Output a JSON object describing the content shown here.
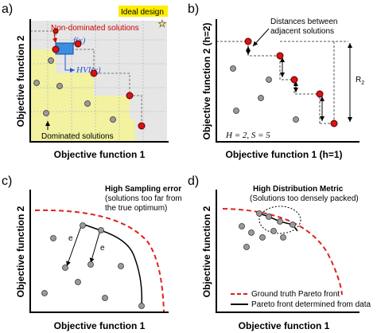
{
  "colors": {
    "pareto_point": "#dd1111",
    "dominated_point": "#9a9a9a",
    "dominated_region": "#f2f2a0",
    "hvi_box": "#3b8de0",
    "ideal_highlight": "#ffee00",
    "ground_truth_front": "#e02020"
  },
  "panels": {
    "a": {
      "letter": "a)",
      "xlabel": "Objective function 1",
      "ylabel": "Objective function 2",
      "ideal_label": "Ideal design",
      "nondominated_label": "Non-dominated solutions",
      "fx_label": "f(x)",
      "hvi_label": "HVI(x)",
      "dominated_label": "Dominated solutions",
      "icons": [
        "star-icon"
      ]
    },
    "b": {
      "letter": "b)",
      "xlabel": "Objective function 1  (h=1)",
      "ylabel": "Objective function 2  (h=2)",
      "distances_label_line1": "Distances between",
      "distances_label_line2": "adjacent solutions",
      "r2_label": "R",
      "r2_sub": "2",
      "params_label": "H = 2,  S = 5"
    },
    "c": {
      "letter": "c)",
      "xlabel": "Objective function 1",
      "ylabel": "Objective function 2",
      "title": "High Sampling error",
      "subtitle_line1": "(solutions too far from",
      "subtitle_line2": "the true optimum)",
      "e_label": "e"
    },
    "d": {
      "letter": "d)",
      "xlabel": "Objective function 1",
      "ylabel": "Objective function 2",
      "title": "High Distribution Metric",
      "subtitle": "(Solutions too densely packed)",
      "legend_ground_truth": "Ground truth Pareto front",
      "legend_determined": "Pareto front determined from data"
    }
  }
}
